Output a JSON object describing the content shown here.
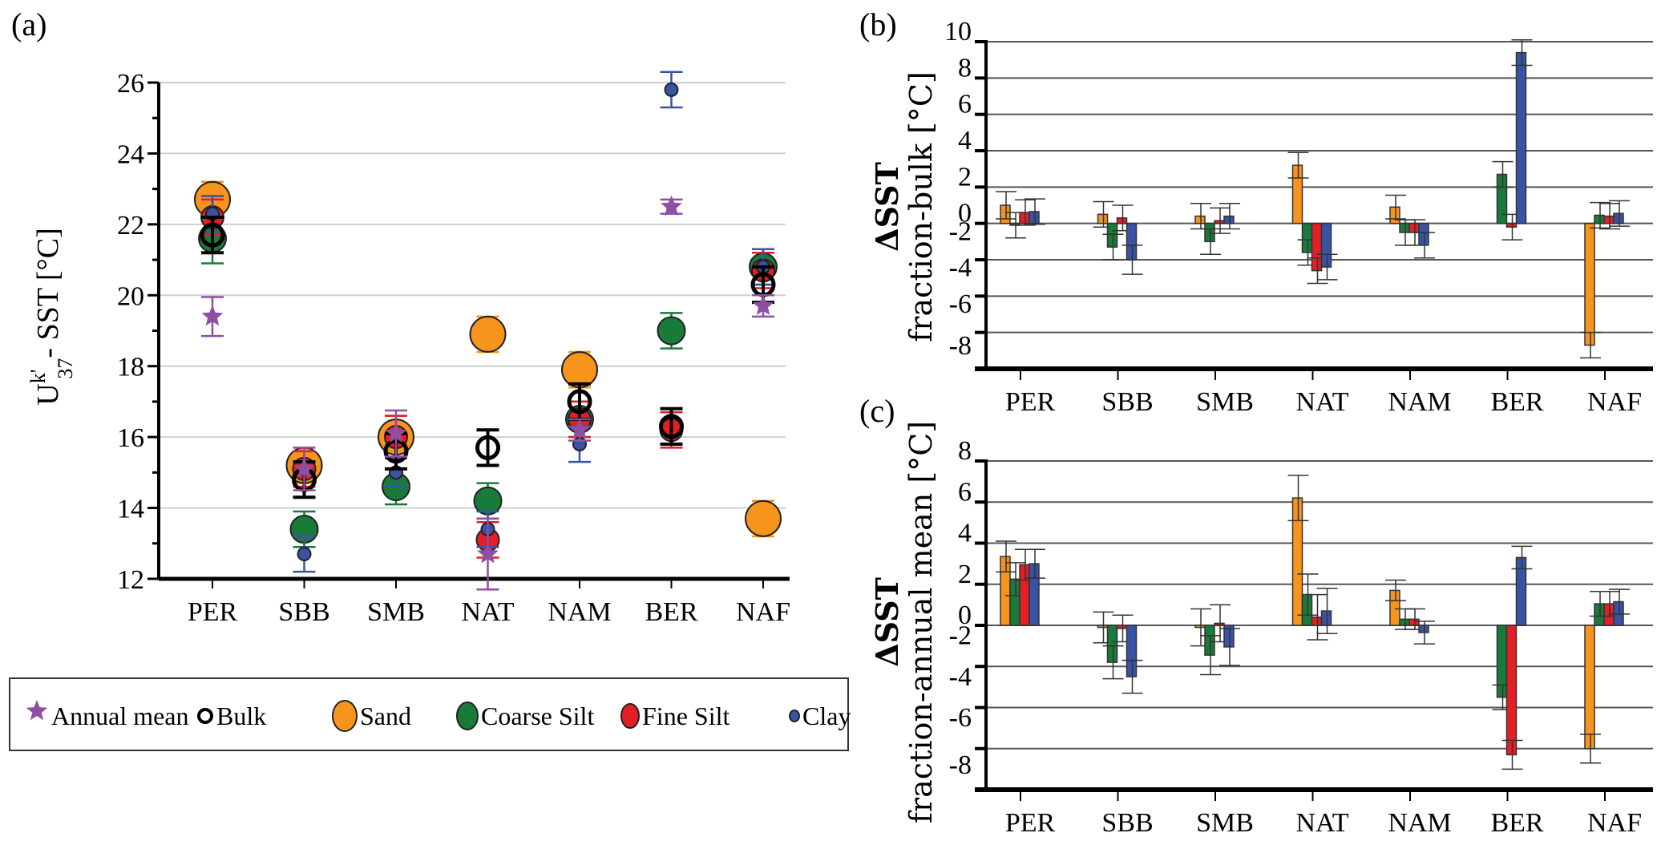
{
  "figure": {
    "panel_labels": [
      "(a)",
      "(b)",
      "(c)"
    ],
    "legend": {
      "items": [
        {
          "label": "Annual mean",
          "marker": "star",
          "color": "#8e4fa3"
        },
        {
          "label": "Bulk",
          "marker": "open-circle",
          "color": "#000000"
        },
        {
          "label": "Sand",
          "marker": "circle-large",
          "color": "#f7941d"
        },
        {
          "label": "Coarse Silt",
          "marker": "circle-medium",
          "color": "#1a7a3a"
        },
        {
          "label": "Fine Silt",
          "marker": "circle-small",
          "color": "#e31e24"
        },
        {
          "label": "Clay",
          "marker": "circle-tiny",
          "color": "#3953a4"
        }
      ]
    }
  },
  "chart_data": [
    {
      "id": "a",
      "type": "scatter",
      "title": "",
      "ylabel_main": "U",
      "ylabel_sup": "k'",
      "ylabel_sub": "37",
      "ylabel_rest": "- SST [°C]",
      "xlabel": "",
      "ylim": [
        12,
        26
      ],
      "yticks": [
        12,
        14,
        16,
        18,
        20,
        22,
        24,
        26
      ],
      "ytick_labels": [
        "12",
        "14",
        "16",
        "18",
        "20",
        "22",
        "24",
        "26"
      ],
      "grid": true,
      "categories": [
        "PER",
        "SBB",
        "SMB",
        "NAT",
        "NAM",
        "BER",
        "NAF"
      ],
      "series": [
        {
          "name": "Annual mean",
          "marker": "star",
          "color": "#8e4fa3",
          "values": [
            19.4,
            15.1,
            16.1,
            12.7,
            16.2,
            22.5,
            19.7
          ],
          "errors": [
            0.55,
            0.6,
            0.65,
            1.0,
            0.3,
            0.2,
            0.3
          ]
        },
        {
          "name": "Bulk",
          "marker": "open-circle",
          "color": "#000000",
          "values": [
            21.7,
            14.8,
            15.6,
            15.7,
            17.0,
            16.3,
            20.3
          ],
          "errors": [
            0.5,
            0.5,
            0.5,
            0.5,
            0.5,
            0.5,
            0.5
          ]
        },
        {
          "name": "Sand",
          "marker": "circle-large",
          "color": "#f7941d",
          "values": [
            22.7,
            15.2,
            16.0,
            18.9,
            17.9,
            null,
            13.7
          ],
          "errors": [
            0.5,
            0.5,
            0.6,
            0.5,
            0.5,
            null,
            0.5
          ]
        },
        {
          "name": "Coarse Silt",
          "marker": "circle-medium",
          "color": "#1a7a3a",
          "values": [
            21.6,
            13.4,
            14.6,
            14.2,
            16.5,
            19.0,
            20.8
          ],
          "errors": [
            0.7,
            0.5,
            0.5,
            0.5,
            0.5,
            0.5,
            0.5
          ]
        },
        {
          "name": "Fine Silt",
          "marker": "circle-small",
          "color": "#e31e24",
          "values": [
            22.2,
            15.1,
            16.0,
            13.1,
            16.5,
            16.2,
            20.7
          ],
          "errors": [
            0.5,
            0.5,
            0.6,
            0.5,
            0.5,
            0.5,
            0.5
          ]
        },
        {
          "name": "Clay",
          "marker": "circle-tiny",
          "color": "#3953a4",
          "values": [
            22.3,
            12.7,
            15.0,
            13.4,
            15.8,
            25.8,
            20.8
          ],
          "errors": [
            0.5,
            0.5,
            0.4,
            0.5,
            0.5,
            0.5,
            0.5
          ]
        }
      ]
    },
    {
      "id": "b",
      "type": "bar",
      "title": "",
      "ylabel_line1": "ΔSST",
      "ylabel_line2": "fraction-bulk [°C]",
      "xlabel": "",
      "ylim": [
        -8,
        10
      ],
      "gridlines": [
        10,
        8,
        6,
        4,
        2,
        0,
        -2,
        -4,
        -6
      ],
      "ytick_labels": [
        "10",
        "8",
        "6",
        "4",
        "2",
        "0",
        "-2",
        "-4",
        "-6",
        "-8"
      ],
      "grid": true,
      "categories": [
        "PER",
        "SBB",
        "SMB",
        "NAT",
        "NAM",
        "BER",
        "NAF"
      ],
      "series": [
        {
          "name": "Sand",
          "color": "#f7941d",
          "values": [
            1.0,
            0.5,
            0.4,
            3.2,
            0.9,
            null,
            -6.7
          ],
          "errors": [
            0.75,
            0.7,
            0.7,
            0.7,
            0.65,
            null,
            0.7
          ]
        },
        {
          "name": "Coarse Silt",
          "color": "#1a7a3a",
          "values": [
            -0.1,
            -1.3,
            -1.0,
            -1.6,
            -0.5,
            2.7,
            0.45
          ],
          "errors": [
            0.7,
            0.7,
            0.7,
            0.7,
            0.7,
            0.7,
            0.7
          ]
        },
        {
          "name": "Fine Silt",
          "color": "#e31e24",
          "values": [
            0.6,
            0.3,
            0.15,
            -2.6,
            -0.5,
            -0.2,
            0.4
          ],
          "errors": [
            0.7,
            0.7,
            0.7,
            0.7,
            0.7,
            0.7,
            0.7
          ]
        },
        {
          "name": "Clay",
          "color": "#3953a4",
          "values": [
            0.65,
            -2.0,
            0.4,
            -2.4,
            -1.2,
            9.4,
            0.55
          ],
          "errors": [
            0.7,
            0.8,
            0.7,
            0.7,
            0.7,
            0.7,
            0.7
          ]
        }
      ]
    },
    {
      "id": "c",
      "type": "bar",
      "title": "",
      "ylabel_line1": "ΔSST",
      "ylabel_line2": "fraction-annual mean [°C]",
      "xlabel": "",
      "ylim": [
        -8,
        8
      ],
      "gridlines": [
        8,
        6,
        4,
        2,
        0,
        -2,
        -4,
        -6
      ],
      "ytick_labels": [
        "8",
        "6",
        "4",
        "2",
        "0",
        "-2",
        "-4",
        "-6",
        "-8"
      ],
      "grid": true,
      "categories": [
        "PER",
        "SBB",
        "SMB",
        "NAT",
        "NAM",
        "BER",
        "NAF"
      ],
      "series": [
        {
          "name": "Sand",
          "color": "#f7941d",
          "values": [
            3.35,
            -0.1,
            -0.1,
            6.2,
            1.7,
            null,
            -6.0
          ],
          "errors": [
            0.75,
            0.75,
            0.9,
            1.1,
            0.5,
            null,
            0.7
          ]
        },
        {
          "name": "Coarse Silt",
          "color": "#1a7a3a",
          "values": [
            2.25,
            -1.8,
            -1.45,
            1.5,
            0.3,
            -3.5,
            1.05
          ],
          "errors": [
            0.8,
            0.8,
            0.95,
            1.0,
            0.5,
            0.6,
            0.6
          ]
        },
        {
          "name": "Fine Silt",
          "color": "#e31e24",
          "values": [
            2.95,
            -0.15,
            0.1,
            0.4,
            0.3,
            -6.3,
            1.05
          ],
          "errors": [
            0.75,
            0.65,
            0.9,
            1.1,
            0.5,
            0.7,
            0.6
          ]
        },
        {
          "name": "Clay",
          "color": "#3953a4",
          "values": [
            3.0,
            -2.5,
            -1.05,
            0.7,
            -0.35,
            3.3,
            1.15
          ],
          "errors": [
            0.7,
            0.8,
            0.9,
            1.1,
            0.55,
            0.55,
            0.6
          ]
        }
      ]
    }
  ]
}
